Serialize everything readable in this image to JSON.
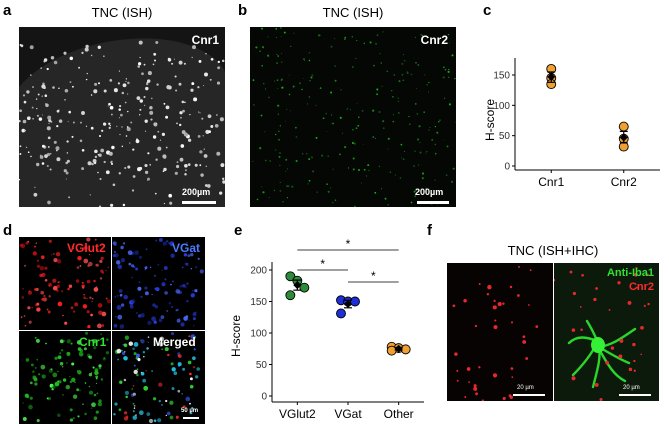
{
  "panels": {
    "a": {
      "letter": "a",
      "title": "TNC (ISH)",
      "label": "Cnr1",
      "scale": "200µm"
    },
    "b": {
      "letter": "b",
      "title": "TNC (ISH)",
      "label": "Cnr2",
      "scale": "200µm"
    },
    "c": {
      "letter": "c"
    },
    "d": {
      "letter": "d",
      "labels": {
        "vglut2": "VGlut2",
        "vgat": "VGat",
        "cnr1": "Cnr1",
        "merged": "Merged"
      },
      "scale": "50 µm"
    },
    "e": {
      "letter": "e"
    },
    "f": {
      "letter": "f",
      "title": "TNC (ISH+IHC)",
      "label_iba1": "Anti-Iba1",
      "label_cnr2": "Cnr2",
      "scale_left": "20 µm",
      "scale_right": "20 µm"
    }
  },
  "colors": {
    "cnr2": "#e8282f",
    "iba1": "#2bd62b",
    "vgat": "#3a5be0",
    "orange": "#f0a030",
    "green": "#2e8b3a",
    "blue": "#1e2fd8"
  },
  "chart_data": [
    {
      "panel": "c",
      "type": "scatter",
      "categories": [
        "Cnr1",
        "Cnr2"
      ],
      "ylabel": "H-score",
      "ylim": [
        0,
        150
      ],
      "yticks": [
        0,
        50,
        100,
        150
      ],
      "series": [
        {
          "category": "Cnr1",
          "points": [
            160,
            145,
            135
          ],
          "mean": 147,
          "sem_low": 138,
          "sem_high": 155,
          "color": "#f0a030"
        },
        {
          "category": "Cnr2",
          "points": [
            65,
            45,
            32
          ],
          "mean": 47,
          "sem_low": 38,
          "sem_high": 57,
          "color": "#f0a030"
        }
      ]
    },
    {
      "panel": "e",
      "type": "scatter",
      "categories": [
        "VGlut2",
        "VGat",
        "Other"
      ],
      "ylabel": "H-score",
      "ylim": [
        0,
        200
      ],
      "yticks": [
        0,
        50,
        100,
        150,
        200
      ],
      "series": [
        {
          "category": "VGlut2",
          "points": [
            190,
            183,
            172,
            160
          ],
          "mean": 176,
          "sem_low": 168,
          "sem_high": 184,
          "color": "#2e8b3a"
        },
        {
          "category": "VGat",
          "points": [
            152,
            150,
            150,
            131
          ],
          "mean": 146,
          "sem_low": 140,
          "sem_high": 152,
          "color": "#1e2fd8"
        },
        {
          "category": "Other",
          "points": [
            78,
            76,
            74,
            72
          ],
          "mean": 75,
          "sem_low": 73,
          "sem_high": 77,
          "color": "#f0a030"
        }
      ],
      "significance": [
        {
          "from": "VGlut2",
          "to": "Other",
          "label": "*"
        },
        {
          "from": "VGlut2",
          "to": "VGat",
          "label": "*"
        },
        {
          "from": "VGat",
          "to": "Other",
          "label": "*"
        }
      ]
    }
  ]
}
